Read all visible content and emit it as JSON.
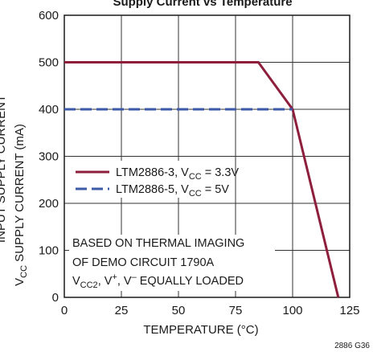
{
  "chart_data": {
    "type": "line",
    "title": "Supply Current vs Temperature",
    "xlabel": "TEMPERATURE (°C)",
    "ylabel": "SUPPLY CURRENT (mA)",
    "ylabel_symbol": "V",
    "ylabel_symbol_sub": "CC",
    "xlim": [
      0,
      125
    ],
    "ylim": [
      0,
      600
    ],
    "x_ticks": [
      0,
      25,
      50,
      75,
      100,
      125
    ],
    "y_ticks": [
      0,
      100,
      200,
      300,
      400,
      500,
      600
    ],
    "grid": true,
    "legend_position": "center-left",
    "series": [
      {
        "legend_main": "LTM2886-3, V",
        "legend_sub": "CC",
        "legend_tail": " = 3.3V",
        "color": "#8e1f3c",
        "style": "solid",
        "x": [
          0,
          85,
          100,
          120
        ],
        "y": [
          500,
          500,
          400,
          0
        ]
      },
      {
        "legend_main": "LTM2886-5, V",
        "legend_sub": "CC",
        "legend_tail": " = 5V",
        "color": "#3c5aa8",
        "style": "dashed",
        "x": [
          0,
          100
        ],
        "y": [
          400,
          400
        ]
      }
    ],
    "annotation": {
      "line1": "BASED ON THERMAL IMAGING",
      "line2": "OF DEMO CIRCUIT 1790A",
      "line3_a": "V",
      "line3_a_sub": "CC2",
      "line3_b": ", V",
      "line3_b_sup": "+",
      "line3_c": ", V",
      "line3_c_sup": "–",
      "line3_d": " EQUALLY LOADED"
    },
    "figure_id": "2886 G36",
    "top_clipped_text": "Supply Current vs Temperature",
    "left_clipped_text": "INPUT SUPPLY CURRENT"
  }
}
